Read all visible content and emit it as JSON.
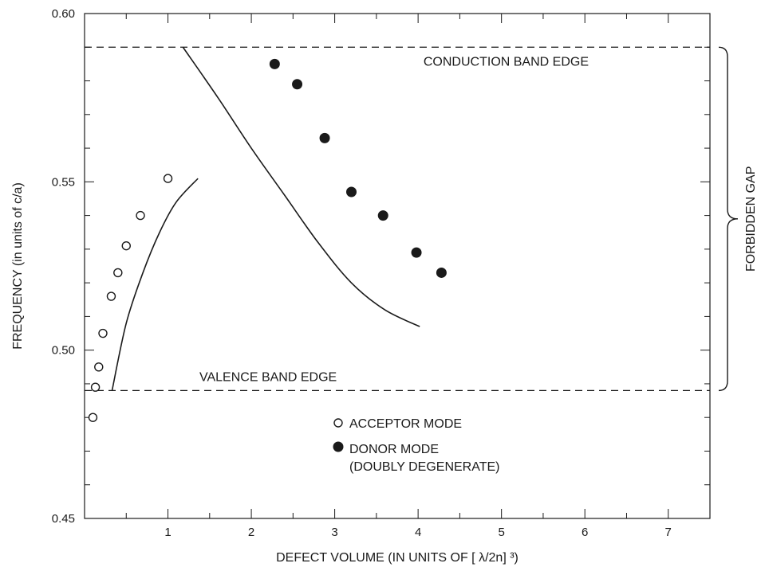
{
  "chart_data": {
    "type": "scatter",
    "xlabel": "DEFECT VOLUME (IN UNITS OF [ λ/2n] ³)",
    "ylabel": "FREQUENCY (in units of c/a)",
    "xlim": [
      0,
      7.5
    ],
    "ylim": [
      0.45,
      0.6
    ],
    "x_ticks": [
      1,
      2,
      3,
      4,
      5,
      6,
      7
    ],
    "x_tick_labels": [
      "1",
      "2",
      "3",
      "4",
      "5",
      "6",
      "7"
    ],
    "y_ticks": [
      0.45,
      0.5,
      0.55,
      0.6
    ],
    "y_tick_labels": [
      "0.45",
      "0.50",
      "0.55",
      "0.60"
    ],
    "grid": false,
    "legend_position": "bottom-center",
    "series": [
      {
        "name": "ACCEPTOR MODE",
        "marker": "open-circle",
        "x": [
          0.1,
          0.13,
          0.17,
          0.22,
          0.32,
          0.4,
          0.5,
          0.67,
          1.0
        ],
        "y": [
          0.48,
          0.489,
          0.495,
          0.505,
          0.516,
          0.523,
          0.531,
          0.54,
          0.551
        ]
      },
      {
        "name": "DONOR MODE (DOUBLY DEGENERATE)",
        "marker": "filled-circle",
        "x": [
          2.28,
          2.55,
          2.88,
          3.2,
          3.58,
          3.98,
          4.28
        ],
        "y": [
          0.585,
          0.579,
          0.563,
          0.547,
          0.54,
          0.529,
          0.523
        ]
      }
    ],
    "curves": [
      {
        "x": [
          0.33,
          0.5,
          0.7,
          0.9,
          1.1,
          1.36
        ],
        "y": [
          0.488,
          0.508,
          0.523,
          0.535,
          0.544,
          0.551
        ]
      },
      {
        "x": [
          1.18,
          1.6,
          2.0,
          2.4,
          2.8,
          3.2,
          3.6,
          4.02
        ],
        "y": [
          0.59,
          0.575,
          0.56,
          0.546,
          0.532,
          0.52,
          0.512,
          0.507
        ]
      }
    ],
    "reference_lines": [
      {
        "y": 0.59,
        "style": "dashed",
        "label": "CONDUCTION BAND EDGE"
      },
      {
        "y": 0.488,
        "style": "dashed",
        "label": "VALENCE BAND EDGE"
      }
    ],
    "bracket": {
      "y_range": [
        0.488,
        0.59
      ],
      "label": "FORBIDDEN GAP"
    },
    "legend": [
      {
        "marker": "open-circle",
        "lines": [
          "ACCEPTOR MODE"
        ]
      },
      {
        "marker": "filled-circle",
        "lines": [
          "DONOR MODE",
          "(DOUBLY DEGENERATE)"
        ]
      }
    ],
    "colors": {
      "ink": "#1a1a1a",
      "background": "#ffffff"
    }
  }
}
